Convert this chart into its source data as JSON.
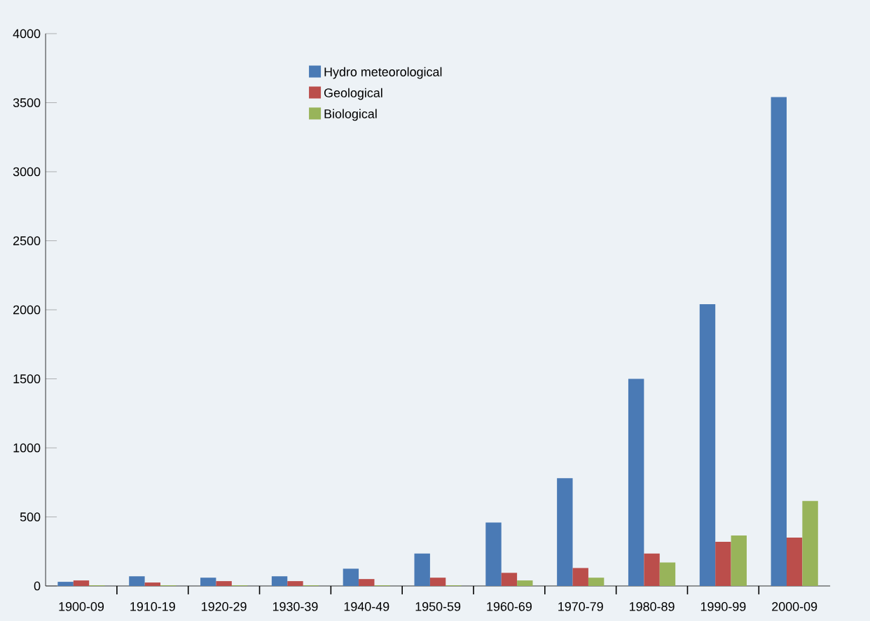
{
  "chart_data": {
    "type": "bar",
    "categories": [
      "1900-09",
      "1910-19",
      "1920-29",
      "1930-39",
      "1940-49",
      "1950-59",
      "1960-69",
      "1970-79",
      "1980-89",
      "1990-99",
      "2000-09"
    ],
    "series": [
      {
        "name": "Hydro meteorological",
        "color": "#4a7ab5",
        "values": [
          30,
          70,
          60,
          70,
          125,
          235,
          460,
          780,
          1500,
          2040,
          3540
        ]
      },
      {
        "name": "Geological",
        "color": "#bb4e4b",
        "values": [
          40,
          25,
          35,
          35,
          50,
          60,
          95,
          130,
          235,
          320,
          350
        ]
      },
      {
        "name": "Biological",
        "color": "#98b45a",
        "values": [
          5,
          5,
          5,
          5,
          5,
          5,
          40,
          60,
          170,
          365,
          615
        ]
      }
    ],
    "ylim": [
      0,
      4000
    ],
    "yticks": [
      0,
      500,
      1000,
      1500,
      2000,
      2500,
      3000,
      3500,
      4000
    ],
    "legend": "top",
    "grid": false
  }
}
